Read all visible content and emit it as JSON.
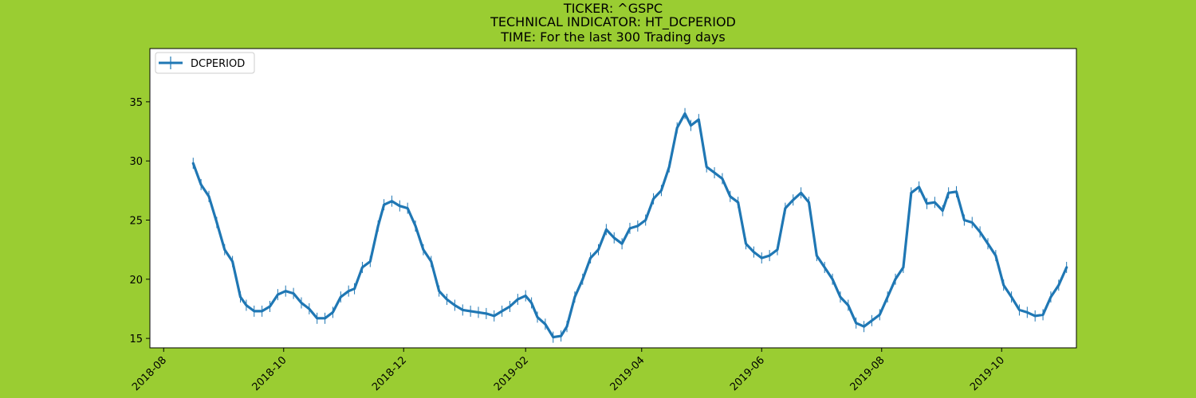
{
  "chart_data": {
    "type": "line",
    "title_lines": [
      "TICKER:  ^GSPC",
      "TECHNICAL INDICATOR:  HT_DCPERIOD",
      "TIME: For the last 300 Trading days"
    ],
    "xlabel": "",
    "ylabel": "",
    "x_range": [
      "2018-07-25",
      "2019-11-08"
    ],
    "ylim": [
      14.2,
      39.5
    ],
    "y_ticks": [
      15,
      20,
      25,
      30,
      35
    ],
    "x_ticks": [
      "2018-08",
      "2018-10",
      "2018-12",
      "2019-02",
      "2019-04",
      "2019-06",
      "2019-08",
      "2019-10"
    ],
    "grid": false,
    "legend": {
      "position": "top-left",
      "entries": [
        "DCPERIOD"
      ]
    },
    "series": [
      {
        "name": "DCPERIOD",
        "color": "#1f77b4",
        "marker": "vertical-line",
        "points": [
          [
            "2018-08-16",
            29.8
          ],
          [
            "2018-08-20",
            28.0
          ],
          [
            "2018-08-24",
            27.0
          ],
          [
            "2018-08-28",
            24.8
          ],
          [
            "2018-09-01",
            22.5
          ],
          [
            "2018-09-05",
            21.5
          ],
          [
            "2018-09-09",
            18.5
          ],
          [
            "2018-09-12",
            17.8
          ],
          [
            "2018-09-16",
            17.3
          ],
          [
            "2018-09-20",
            17.3
          ],
          [
            "2018-09-24",
            17.7
          ],
          [
            "2018-09-28",
            18.7
          ],
          [
            "2018-10-02",
            19.0
          ],
          [
            "2018-10-06",
            18.8
          ],
          [
            "2018-10-10",
            18.0
          ],
          [
            "2018-10-14",
            17.5
          ],
          [
            "2018-10-18",
            16.7
          ],
          [
            "2018-10-22",
            16.7
          ],
          [
            "2018-10-26",
            17.2
          ],
          [
            "2018-10-30",
            18.5
          ],
          [
            "2018-11-03",
            19.0
          ],
          [
            "2018-11-06",
            19.2
          ],
          [
            "2018-11-10",
            21.0
          ],
          [
            "2018-11-14",
            21.5
          ],
          [
            "2018-11-18",
            24.5
          ],
          [
            "2018-11-21",
            26.3
          ],
          [
            "2018-11-25",
            26.6
          ],
          [
            "2018-11-29",
            26.2
          ],
          [
            "2018-12-03",
            26.0
          ],
          [
            "2018-12-07",
            24.5
          ],
          [
            "2018-12-11",
            22.5
          ],
          [
            "2018-12-15",
            21.5
          ],
          [
            "2018-12-19",
            19.0
          ],
          [
            "2018-12-23",
            18.3
          ],
          [
            "2018-12-27",
            17.8
          ],
          [
            "2018-12-31",
            17.4
          ],
          [
            "2019-01-04",
            17.3
          ],
          [
            "2019-01-08",
            17.2
          ],
          [
            "2019-01-12",
            17.1
          ],
          [
            "2019-01-16",
            16.9
          ],
          [
            "2019-01-20",
            17.3
          ],
          [
            "2019-01-24",
            17.7
          ],
          [
            "2019-01-28",
            18.3
          ],
          [
            "2019-02-01",
            18.6
          ],
          [
            "2019-02-04",
            18.0
          ],
          [
            "2019-02-07",
            16.8
          ],
          [
            "2019-02-11",
            16.2
          ],
          [
            "2019-02-15",
            15.1
          ],
          [
            "2019-02-19",
            15.2
          ],
          [
            "2019-02-22",
            16.0
          ],
          [
            "2019-02-26",
            18.5
          ],
          [
            "2019-03-02",
            20.0
          ],
          [
            "2019-03-06",
            21.8
          ],
          [
            "2019-03-10",
            22.5
          ],
          [
            "2019-03-14",
            24.2
          ],
          [
            "2019-03-18",
            23.5
          ],
          [
            "2019-03-22",
            23.0
          ],
          [
            "2019-03-26",
            24.3
          ],
          [
            "2019-03-30",
            24.5
          ],
          [
            "2019-04-03",
            25.0
          ],
          [
            "2019-04-07",
            26.8
          ],
          [
            "2019-04-11",
            27.5
          ],
          [
            "2019-04-15",
            29.5
          ],
          [
            "2019-04-19",
            32.8
          ],
          [
            "2019-04-23",
            34.0
          ],
          [
            "2019-04-26",
            33.0
          ],
          [
            "2019-04-30",
            33.5
          ],
          [
            "2019-05-04",
            29.5
          ],
          [
            "2019-05-08",
            29.0
          ],
          [
            "2019-05-12",
            28.5
          ],
          [
            "2019-05-16",
            27.0
          ],
          [
            "2019-05-20",
            26.5
          ],
          [
            "2019-05-24",
            23.0
          ],
          [
            "2019-05-28",
            22.3
          ],
          [
            "2019-06-01",
            21.8
          ],
          [
            "2019-06-05",
            22.0
          ],
          [
            "2019-06-09",
            22.5
          ],
          [
            "2019-06-13",
            26.0
          ],
          [
            "2019-06-17",
            26.7
          ],
          [
            "2019-06-21",
            27.3
          ],
          [
            "2019-06-25",
            26.5
          ],
          [
            "2019-06-29",
            22.0
          ],
          [
            "2019-07-03",
            21.0
          ],
          [
            "2019-07-07",
            20.0
          ],
          [
            "2019-07-11",
            18.5
          ],
          [
            "2019-07-15",
            17.8
          ],
          [
            "2019-07-19",
            16.3
          ],
          [
            "2019-07-23",
            16.0
          ],
          [
            "2019-07-27",
            16.5
          ],
          [
            "2019-07-31",
            17.0
          ],
          [
            "2019-08-04",
            18.5
          ],
          [
            "2019-08-08",
            20.0
          ],
          [
            "2019-08-12",
            21.0
          ],
          [
            "2019-08-16",
            27.3
          ],
          [
            "2019-08-20",
            27.8
          ],
          [
            "2019-08-24",
            26.4
          ],
          [
            "2019-08-28",
            26.5
          ],
          [
            "2019-09-01",
            25.8
          ],
          [
            "2019-09-04",
            27.3
          ],
          [
            "2019-09-08",
            27.4
          ],
          [
            "2019-09-12",
            25.0
          ],
          [
            "2019-09-16",
            24.8
          ],
          [
            "2019-09-20",
            24.0
          ],
          [
            "2019-09-24",
            23.0
          ],
          [
            "2019-09-28",
            22.0
          ],
          [
            "2019-10-02",
            19.5
          ],
          [
            "2019-10-06",
            18.5
          ],
          [
            "2019-10-10",
            17.4
          ],
          [
            "2019-10-14",
            17.2
          ],
          [
            "2019-10-18",
            16.9
          ],
          [
            "2019-10-22",
            17.0
          ],
          [
            "2019-10-26",
            18.5
          ],
          [
            "2019-10-30",
            19.5
          ],
          [
            "2019-11-03",
            21.0
          ]
        ]
      }
    ]
  }
}
